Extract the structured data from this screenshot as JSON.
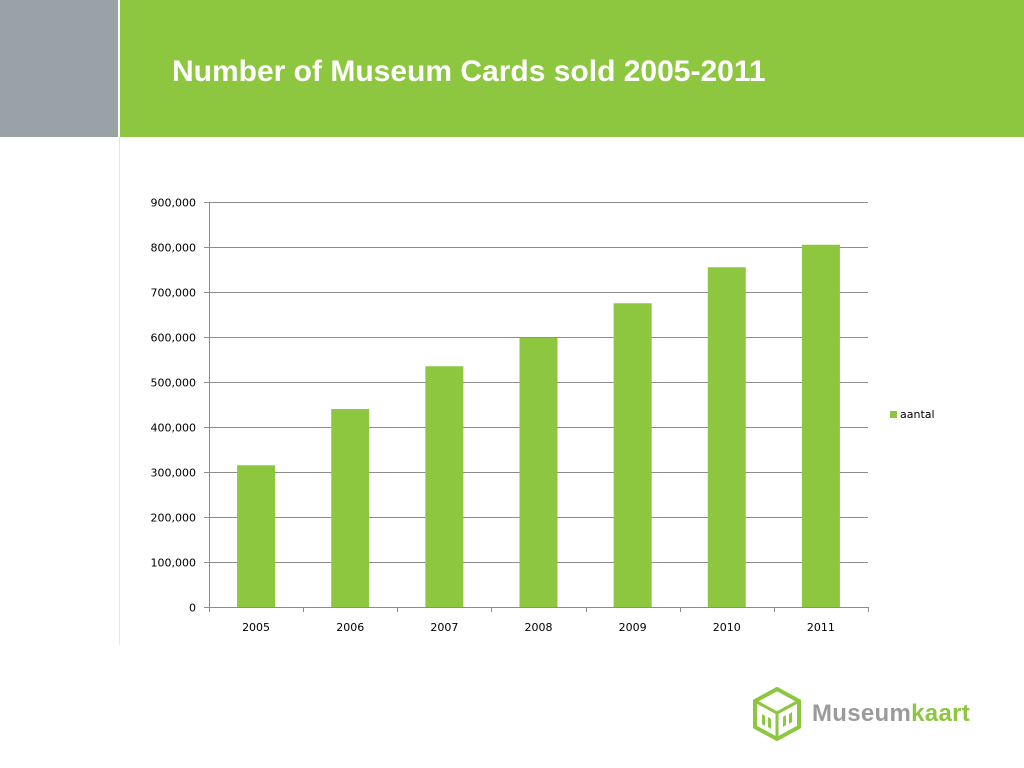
{
  "slide": {
    "title": "Number of Museum Cards sold 2005-2011"
  },
  "colors": {
    "header_green": "#8dc63f",
    "side_grey": "#9aa2a8",
    "bar": "#8dc63f",
    "grid": "#8c8c8c"
  },
  "chart_data": {
    "type": "bar",
    "title": "Number of Museum Cards sold 2005-2011",
    "categories": [
      "2005",
      "2006",
      "2007",
      "2008",
      "2009",
      "2010",
      "2011"
    ],
    "series": [
      {
        "name": "aantal",
        "values": [
          315000,
          440000,
          535000,
          598000,
          675000,
          755000,
          805000
        ]
      }
    ],
    "ylim": [
      0,
      900000
    ],
    "yticks": [
      0,
      100000,
      200000,
      300000,
      400000,
      500000,
      600000,
      700000,
      800000,
      900000
    ],
    "ytick_labels": [
      "0",
      "100,000",
      "200,000",
      "300,000",
      "400,000",
      "500,000",
      "600,000",
      "700,000",
      "800,000",
      "900,000"
    ],
    "xlabel": "",
    "ylabel": "",
    "grid": true,
    "legend": "right"
  },
  "logo": {
    "word1": "Museum",
    "word2": "kaart",
    "icon": "museumkaart-cube-icon"
  }
}
